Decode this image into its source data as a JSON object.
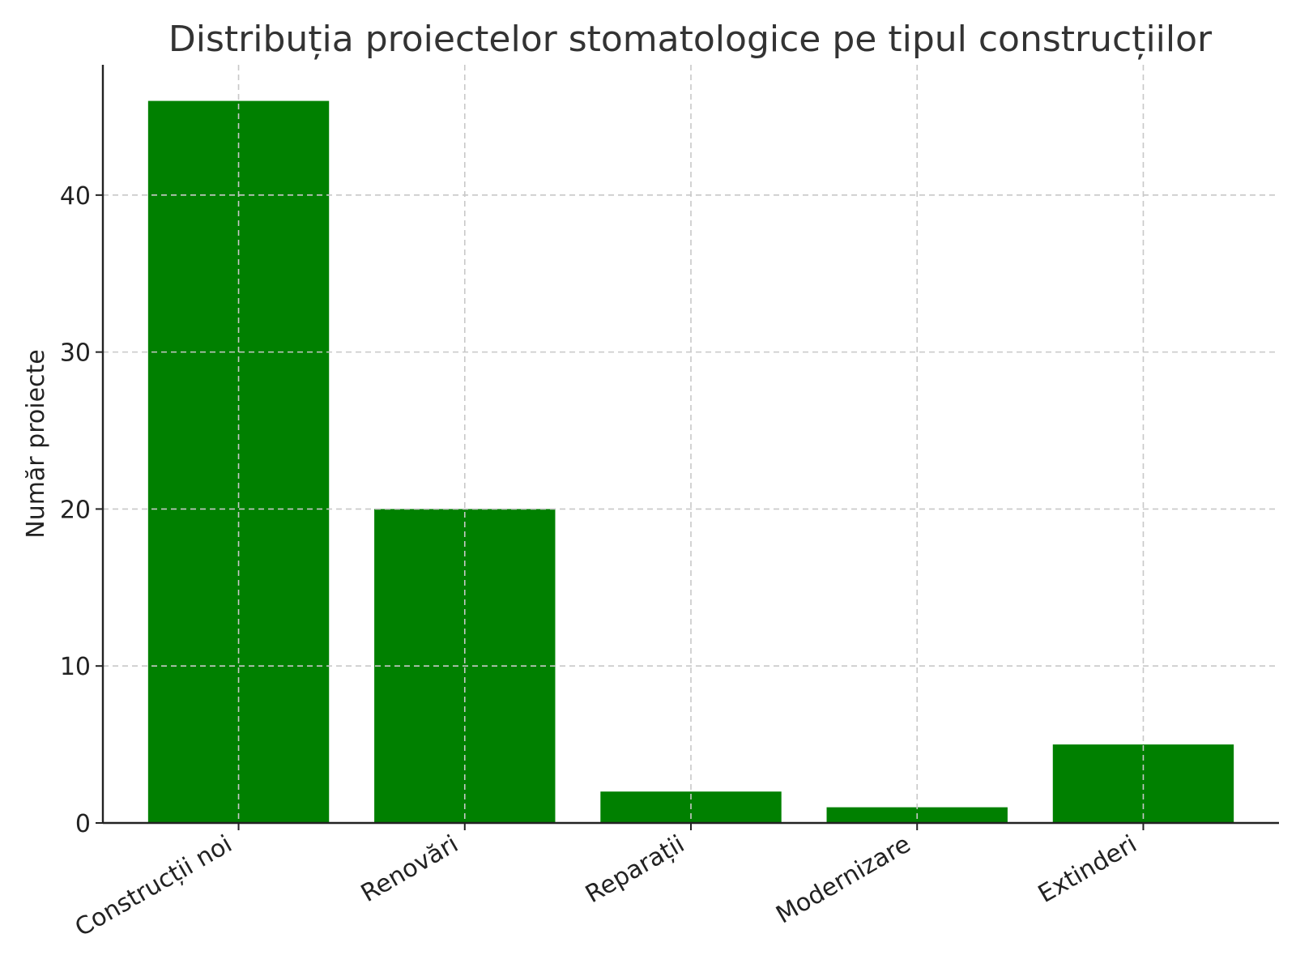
{
  "chart_data": {
    "type": "bar",
    "title": "Distribuția proiectelor stomatologice pe tipul construcțiilor",
    "xlabel": "",
    "ylabel": "Număr proiecte",
    "categories": [
      "Construcții noi",
      "Renovări",
      "Reparații",
      "Modernizare",
      "Extinderi"
    ],
    "values": [
      46,
      20,
      2,
      1,
      5
    ],
    "ylim": [
      0,
      48.3
    ],
    "yticks": [
      0,
      10,
      20,
      30,
      40
    ],
    "ytick_labels": [
      "0",
      "10",
      "20",
      "30",
      "40"
    ],
    "grid": true,
    "bar_color": "#008000",
    "spines": [
      "left",
      "bottom"
    ]
  }
}
